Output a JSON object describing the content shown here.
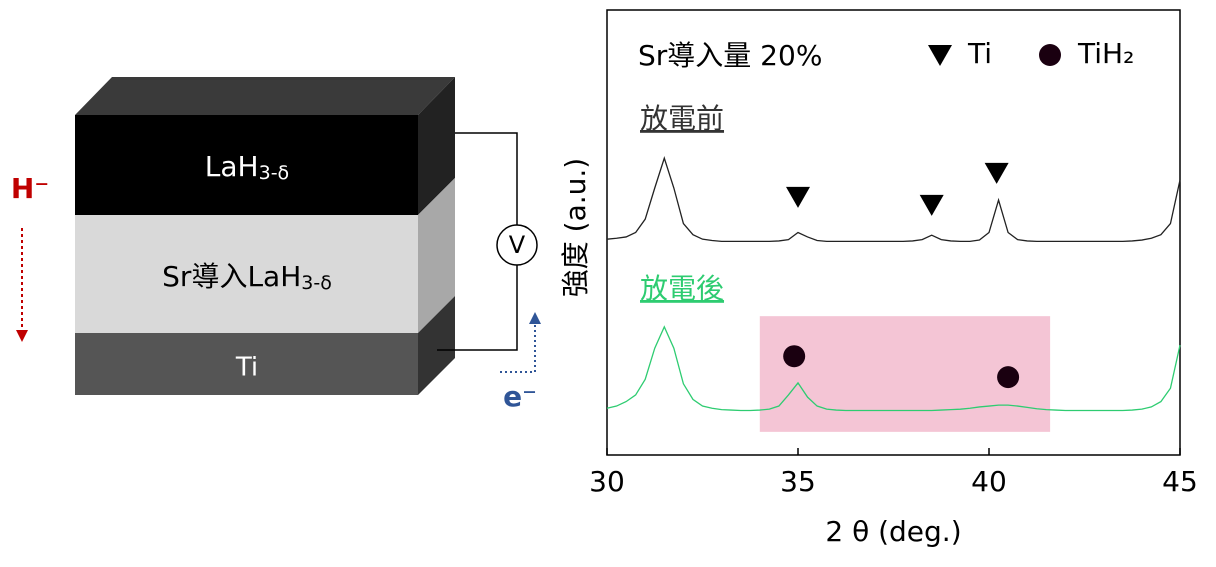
{
  "diagram": {
    "layers": [
      {
        "label": "LaH",
        "sub": "3-δ"
      },
      {
        "label": "Sr導入LaH",
        "sub": "3-δ"
      },
      {
        "label": "Ti"
      }
    ],
    "ion": "H⁻",
    "electron": "e⁻",
    "meter": "V"
  },
  "chart_data": {
    "type": "line",
    "title": "Sr導入量 20%",
    "xlabel": "2 θ (deg.)",
    "ylabel": "強度 (a.u.)",
    "xlim": [
      30,
      45
    ],
    "xticks": [
      30,
      35,
      40,
      45
    ],
    "ylim": [
      0,
      100
    ],
    "x": [
      30,
      30.25,
      30.5,
      30.75,
      31,
      31.25,
      31.5,
      31.75,
      32,
      32.25,
      32.5,
      32.75,
      33,
      33.25,
      33.5,
      33.75,
      34,
      34.25,
      34.5,
      34.75,
      35,
      35.25,
      35.5,
      35.75,
      36,
      36.25,
      36.5,
      36.75,
      37,
      37.25,
      37.5,
      37.75,
      38,
      38.25,
      38.5,
      38.75,
      39,
      39.25,
      39.5,
      39.75,
      40,
      40.25,
      40.5,
      40.75,
      41,
      41.25,
      41.5,
      41.75,
      42,
      42.25,
      42.5,
      42.75,
      43,
      43.25,
      43.5,
      43.75,
      44,
      44.25,
      44.5,
      44.75,
      45
    ],
    "series": [
      {
        "name": "放電前",
        "color": "#222222",
        "values": [
          48.5,
          48.7,
          49,
          50,
          53,
          60,
          66.7,
          60,
          52,
          49.5,
          48.5,
          48.2,
          48,
          48,
          48,
          48,
          48,
          48,
          48.1,
          48.4,
          50,
          49,
          48.2,
          48,
          48,
          48,
          48,
          48,
          48,
          48,
          48,
          48,
          48.1,
          48.4,
          49.4,
          48.4,
          48.1,
          48,
          48,
          48.3,
          50,
          57.3,
          50,
          48.4,
          48.1,
          48,
          48,
          48,
          48,
          48,
          48,
          48,
          48,
          48,
          48,
          48.1,
          48.3,
          48.7,
          49.5,
          52,
          61.8
        ]
      },
      {
        "name": "放電後",
        "color": "#2ecc71",
        "values": [
          10.5,
          11,
          12,
          13.5,
          17,
          24,
          28.8,
          24,
          16,
          12.5,
          11,
          10.5,
          10.2,
          10.1,
          10,
          10,
          10.1,
          10.3,
          11,
          13.5,
          16.2,
          13,
          11,
          10.3,
          10.1,
          10,
          10,
          10,
          10,
          10,
          10,
          10,
          10,
          10,
          10,
          10.1,
          10.2,
          10.3,
          10.5,
          10.8,
          11,
          11.2,
          11.2,
          11,
          10.7,
          10.4,
          10.2,
          10.1,
          10,
          10,
          10,
          10,
          10,
          10,
          10,
          10.1,
          10.3,
          10.8,
          12,
          15,
          24.7
        ]
      }
    ],
    "markers": [
      {
        "name": "Ti",
        "shape": "triangle",
        "x": [
          35,
          38.5,
          40.2
        ],
        "y": [
          58,
          56.2,
          63.4
        ]
      },
      {
        "name": "TiH₂",
        "shape": "circle",
        "x": [
          34.9,
          40.5
        ],
        "y": [
          22.2,
          17.5
        ]
      }
    ],
    "highlight": {
      "xlim": [
        34,
        41.6
      ],
      "yrange": [
        5.2,
        31.2
      ],
      "color": "#f4c5d5"
    }
  }
}
